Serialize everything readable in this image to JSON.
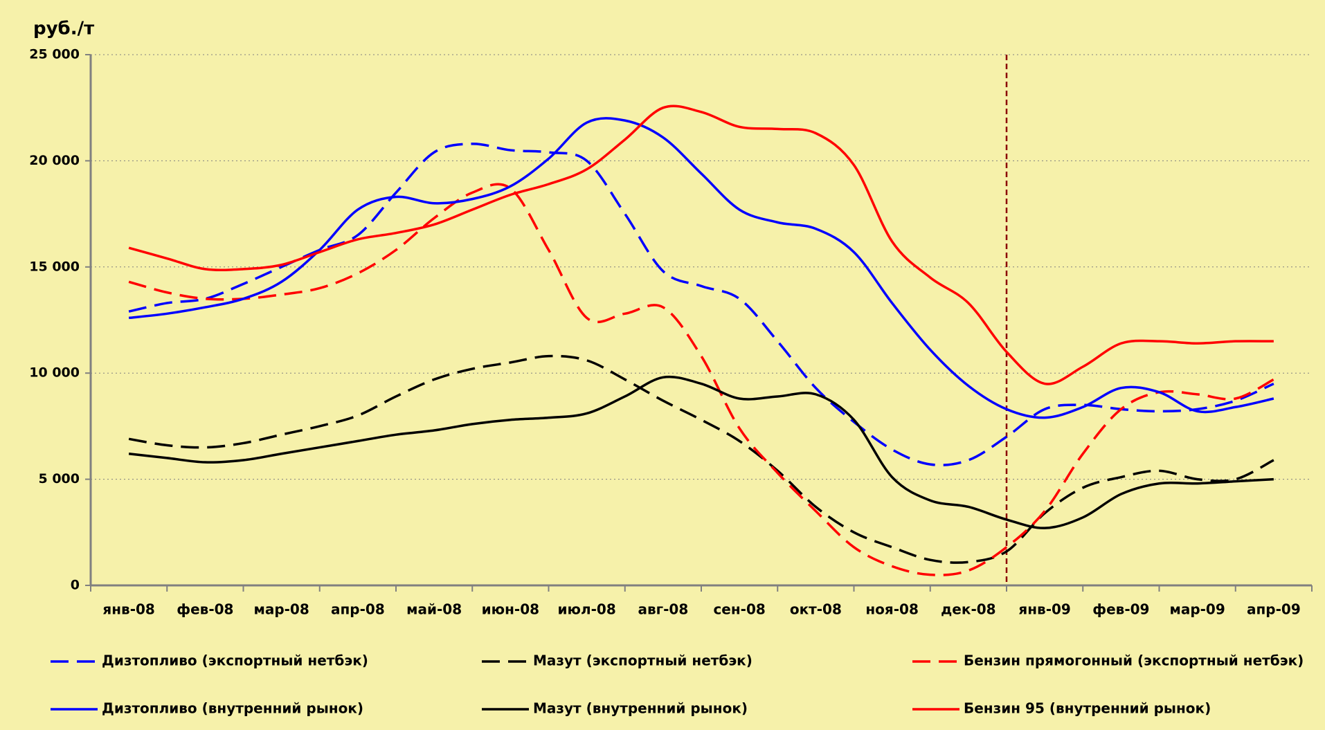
{
  "chart_data": {
    "type": "line",
    "y_label": "руб./т",
    "categories": [
      "янв-08",
      null,
      "фев-08",
      null,
      "мар-08",
      null,
      "апр-08",
      null,
      "май-08",
      null,
      "июн-08",
      null,
      "июл-08",
      null,
      "авг-08",
      null,
      "сен-08",
      null,
      "окт-08",
      null,
      "ноя-08",
      null,
      "дек-08",
      null,
      "янв-09",
      null,
      "фев-09",
      null,
      "мар-09",
      null,
      "апр-09"
    ],
    "ylim": [
      0,
      25000
    ],
    "yticks": [
      0,
      {
        "value": 5000,
        "label": "5 000"
      },
      {
        "value": 10000,
        "label": "10 000"
      },
      {
        "value": 15000,
        "label": "15 000"
      },
      {
        "value": 20000,
        "label": "20 000"
      },
      {
        "value": 25000,
        "label": "25 000"
      }
    ],
    "grid": true,
    "series": [
      {
        "name": "Дизтопливо (экспортный нетбэк)",
        "color": "#0000ff",
        "style": "dashed",
        "values": [
          12900,
          13300,
          13500,
          14200,
          15000,
          15800,
          16500,
          18500,
          20400,
          20800,
          20500,
          20400,
          20000,
          17500,
          14800,
          14100,
          13500,
          11500,
          9300,
          7700,
          6400,
          5700,
          5900,
          7000,
          8300,
          8500,
          8300,
          8200,
          8300,
          8700,
          9500
        ]
      },
      {
        "name": "Мазут (экспортный нетбэк)",
        "color": "#000000",
        "style": "dashed",
        "values": [
          6900,
          6600,
          6500,
          6700,
          7100,
          7500,
          8000,
          8900,
          9700,
          10200,
          10500,
          10800,
          10600,
          9700,
          8700,
          7800,
          6800,
          5400,
          3700,
          2500,
          1800,
          1200,
          1100,
          1600,
          3400,
          4600,
          5100,
          5400,
          5000,
          5000,
          5900
        ]
      },
      {
        "name": "Бензин прямогонный (экспортный нетбэк)",
        "color": "#ff0000",
        "style": "dashed",
        "values": [
          14300,
          13800,
          13500,
          13500,
          13700,
          14000,
          14700,
          15800,
          17300,
          18500,
          18700,
          15800,
          12600,
          12800,
          13100,
          10800,
          7400,
          5300,
          3500,
          1800,
          900,
          500,
          700,
          1800,
          3500,
          6200,
          8300,
          9100,
          9000,
          8800,
          9700
        ]
      },
      {
        "name": "Дизтопливо (внутренний рынок)",
        "color": "#0000ff",
        "style": "solid",
        "values": [
          12600,
          12800,
          13100,
          13500,
          14300,
          15800,
          17700,
          18300,
          18000,
          18200,
          18800,
          20100,
          21800,
          21900,
          21100,
          19400,
          17700,
          17100,
          16800,
          15700,
          13300,
          11100,
          9400,
          8300,
          7900,
          8400,
          9300,
          9100,
          8200,
          8400,
          8800
        ]
      },
      {
        "name": "Мазут (внутренний рынок)",
        "color": "#000000",
        "style": "solid",
        "values": [
          6200,
          6000,
          5800,
          5900,
          6200,
          6500,
          6800,
          7100,
          7300,
          7600,
          7800,
          7900,
          8100,
          8900,
          9800,
          9500,
          8800,
          8900,
          9000,
          7800,
          5100,
          4000,
          3700,
          3100,
          2700,
          3200,
          4300,
          4800,
          4800,
          4900,
          5000
        ]
      },
      {
        "name": "Бензин 95 (внутренний рынок)",
        "color": "#ff0000",
        "style": "solid",
        "values": [
          15900,
          15400,
          14900,
          14900,
          15100,
          15700,
          16300,
          16600,
          17000,
          17700,
          18400,
          18900,
          19600,
          21000,
          22500,
          22300,
          21600,
          21500,
          21300,
          19800,
          16200,
          14500,
          13300,
          11000,
          9500,
          10300,
          11400,
          11500,
          11400,
          11500,
          11500
        ]
      }
    ]
  }
}
